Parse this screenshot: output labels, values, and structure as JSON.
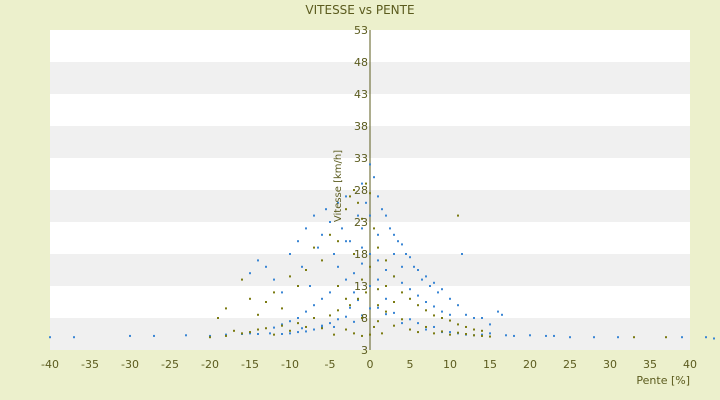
{
  "chart_data": {
    "type": "scatter",
    "title": "VITESSE vs PENTE",
    "xlabel": "Pente [%]",
    "ylabel": "Vitesse [km/h]",
    "xlim": [
      -40,
      40
    ],
    "ylim": [
      3,
      53
    ],
    "x_ticks": [
      -40,
      -35,
      -30,
      -25,
      -20,
      -15,
      -10,
      -5,
      0,
      5,
      10,
      15,
      20,
      25,
      30,
      35,
      40
    ],
    "y_ticks": [
      3,
      8,
      13,
      18,
      23,
      28,
      33,
      38,
      43,
      48,
      53
    ],
    "grid": "horizontal bands",
    "legend": "none",
    "series": [
      {
        "color": "#3a86d4",
        "points": [
          [
            -40,
            5.0
          ],
          [
            -37,
            5.0
          ],
          [
            -30,
            5.2
          ],
          [
            -27,
            5.2
          ],
          [
            -23,
            5.3
          ],
          [
            -20,
            5.2
          ],
          [
            -18,
            5.4
          ],
          [
            -16,
            5.5
          ],
          [
            -15,
            5.6
          ],
          [
            -14,
            5.5
          ],
          [
            -12.5,
            5.6
          ],
          [
            -11,
            5.5
          ],
          [
            -10,
            5.6
          ],
          [
            -9,
            5.8
          ],
          [
            -8.5,
            6.4
          ],
          [
            -8,
            5.9
          ],
          [
            -7,
            6.2
          ],
          [
            -6,
            6.8
          ],
          [
            -6,
            6.6
          ],
          [
            -5,
            7.2
          ],
          [
            -4.5,
            6.6
          ],
          [
            -4,
            7.8
          ],
          [
            -3,
            8.2
          ],
          [
            -2.5,
            9.6
          ],
          [
            -2,
            7.4
          ],
          [
            -1.5,
            10.8
          ],
          [
            -1,
            8.4
          ],
          [
            0,
            9.5
          ],
          [
            1,
            9.6
          ],
          [
            2,
            8.6
          ],
          [
            3,
            8.8
          ],
          [
            4,
            7.2
          ],
          [
            5,
            7.8
          ],
          [
            6,
            7.2
          ],
          [
            7,
            6.2
          ],
          [
            8,
            6.6
          ],
          [
            9,
            5.8
          ],
          [
            10,
            5.8
          ],
          [
            11,
            5.6
          ],
          [
            12,
            5.4
          ],
          [
            13,
            5.3
          ],
          [
            14,
            5.4
          ],
          [
            15,
            5.6
          ],
          [
            17,
            5.3
          ],
          [
            18,
            5.2
          ],
          [
            20,
            5.3
          ],
          [
            22,
            5.2
          ],
          [
            23,
            5.2
          ],
          [
            25,
            5.0
          ],
          [
            28,
            5.0
          ],
          [
            31,
            5.0
          ],
          [
            39,
            5.0
          ],
          [
            42,
            5.0
          ],
          [
            43,
            4.8
          ],
          [
            -15,
            15.0
          ],
          [
            -14,
            17.0
          ],
          [
            -13,
            16.0
          ],
          [
            -12,
            14.0
          ],
          [
            -11,
            12.0
          ],
          [
            -10,
            18.0
          ],
          [
            -9,
            20.0
          ],
          [
            -8.5,
            16.0
          ],
          [
            -8,
            22.0
          ],
          [
            -7.5,
            13.0
          ],
          [
            -7,
            24.0
          ],
          [
            -6.5,
            19.0
          ],
          [
            -6,
            21.0
          ],
          [
            -5.5,
            25.0
          ],
          [
            -5,
            23.0
          ],
          [
            -4.5,
            18.0
          ],
          [
            -4,
            26.0
          ],
          [
            -3.5,
            22.0
          ],
          [
            -3,
            27.0
          ],
          [
            -2.5,
            20.0
          ],
          [
            -2,
            28.0
          ],
          [
            -1.5,
            24.0
          ],
          [
            -1,
            29.0
          ],
          [
            -0.5,
            26.0
          ],
          [
            0,
            32.0
          ],
          [
            0.5,
            30.0
          ],
          [
            1,
            27.0
          ],
          [
            1.5,
            25.0
          ],
          [
            2,
            24.0
          ],
          [
            2.5,
            22.0
          ],
          [
            3,
            21.0
          ],
          [
            3.5,
            20.0
          ],
          [
            4,
            19.5
          ],
          [
            4.5,
            18.0
          ],
          [
            5,
            17.5
          ],
          [
            5.5,
            16.0
          ],
          [
            6,
            15.5
          ],
          [
            6.5,
            14.0
          ],
          [
            7,
            14.5
          ],
          [
            7.5,
            13.0
          ],
          [
            8,
            13.5
          ],
          [
            8.5,
            12.0
          ],
          [
            9,
            12.5
          ],
          [
            10,
            11.0
          ],
          [
            11,
            10.0
          ],
          [
            11.5,
            18.0
          ],
          [
            12,
            8.5
          ],
          [
            13,
            8.0
          ],
          [
            14,
            8.0
          ],
          [
            15,
            7.0
          ],
          [
            16,
            9.0
          ],
          [
            16.5,
            8.5
          ],
          [
            -3,
            14.0
          ],
          [
            -2,
            15.0
          ],
          [
            -1,
            16.5
          ],
          [
            0,
            18.0
          ],
          [
            1,
            17.0
          ],
          [
            2,
            15.5
          ],
          [
            3,
            14.5
          ],
          [
            4,
            13.5
          ],
          [
            5,
            12.5
          ],
          [
            6,
            11.5
          ],
          [
            7,
            10.5
          ],
          [
            8,
            9.8
          ],
          [
            9,
            9.0
          ],
          [
            10,
            8.5
          ],
          [
            -5,
            12.0
          ],
          [
            -6,
            11.0
          ],
          [
            -7,
            10.0
          ],
          [
            -8,
            9.0
          ],
          [
            -9,
            8.0
          ],
          [
            -10,
            7.5
          ],
          [
            -11,
            7.0
          ],
          [
            -12,
            6.5
          ],
          [
            -3,
            20.0
          ],
          [
            -1,
            22.0
          ],
          [
            1,
            21.0
          ],
          [
            3,
            18.0
          ],
          [
            -4,
            16.0
          ],
          [
            4,
            16.0
          ],
          [
            -2,
            12.0
          ],
          [
            2,
            11.0
          ],
          [
            0,
            13.0
          ],
          [
            0,
            24.0
          ],
          [
            -1,
            19.0
          ],
          [
            1,
            14.0
          ]
        ]
      },
      {
        "color": "#7b7b12",
        "points": [
          [
            -20,
            5.0
          ],
          [
            -18,
            5.2
          ],
          [
            -17,
            6.0
          ],
          [
            -16,
            5.6
          ],
          [
            -15,
            5.8
          ],
          [
            -14,
            6.2
          ],
          [
            -13,
            6.4
          ],
          [
            -12,
            5.4
          ],
          [
            -11,
            6.8
          ],
          [
            -10,
            6.0
          ],
          [
            -9,
            7.2
          ],
          [
            -8,
            6.6
          ],
          [
            -7,
            8.0
          ],
          [
            -6,
            6.4
          ],
          [
            -5,
            8.4
          ],
          [
            -4.5,
            5.4
          ],
          [
            -4,
            9.2
          ],
          [
            -3,
            6.2
          ],
          [
            -2.5,
            10.0
          ],
          [
            -2,
            5.6
          ],
          [
            -1.5,
            11.0
          ],
          [
            -1,
            5.2
          ],
          [
            -0.5,
            12.0
          ],
          [
            0,
            5.4
          ],
          [
            0.5,
            6.6
          ],
          [
            1,
            10.0
          ],
          [
            1.5,
            5.6
          ],
          [
            2,
            9.0
          ],
          [
            3,
            6.8
          ],
          [
            4,
            7.8
          ],
          [
            5,
            6.2
          ],
          [
            6,
            5.8
          ],
          [
            7,
            6.6
          ],
          [
            8,
            5.6
          ],
          [
            9,
            5.9
          ],
          [
            10,
            5.4
          ],
          [
            11,
            5.7
          ],
          [
            12,
            5.5
          ],
          [
            13,
            5.3
          ],
          [
            14,
            5.2
          ],
          [
            15,
            5.1
          ],
          [
            33,
            5.0
          ],
          [
            37,
            5.0
          ],
          [
            -19,
            8.0
          ],
          [
            -18,
            9.5
          ],
          [
            -16,
            14.0
          ],
          [
            -15,
            11.0
          ],
          [
            -14,
            8.5
          ],
          [
            -13,
            10.5
          ],
          [
            -12,
            12.0
          ],
          [
            -11,
            9.5
          ],
          [
            -10,
            14.5
          ],
          [
            -9,
            13.0
          ],
          [
            -8,
            15.5
          ],
          [
            -7,
            19.0
          ],
          [
            -6,
            17.0
          ],
          [
            -5,
            21.0
          ],
          [
            -4,
            20.0
          ],
          [
            -3,
            25.0
          ],
          [
            -2.5,
            27.0
          ],
          [
            -2,
            28.0
          ],
          [
            -1.5,
            26.0
          ],
          [
            -1,
            23.5
          ],
          [
            -0.5,
            29.0
          ],
          [
            0,
            27.5
          ],
          [
            0.5,
            22.0
          ],
          [
            1,
            19.0
          ],
          [
            2,
            17.0
          ],
          [
            3,
            14.5
          ],
          [
            4,
            12.0
          ],
          [
            5,
            11.0
          ],
          [
            6,
            10.0
          ],
          [
            7,
            9.2
          ],
          [
            8,
            8.4
          ],
          [
            9,
            8.0
          ],
          [
            10,
            7.6
          ],
          [
            11,
            7.0
          ],
          [
            11,
            24.0
          ],
          [
            12,
            6.6
          ],
          [
            13,
            6.2
          ],
          [
            14,
            6.0
          ],
          [
            -3,
            11.0
          ],
          [
            -1,
            8.0
          ],
          [
            1,
            7.5
          ],
          [
            2,
            13.0
          ],
          [
            -2,
            18.0
          ],
          [
            0,
            16.0
          ],
          [
            -4,
            13.0
          ],
          [
            3,
            10.5
          ],
          [
            -1,
            14.0
          ],
          [
            1,
            12.5
          ]
        ]
      }
    ]
  }
}
